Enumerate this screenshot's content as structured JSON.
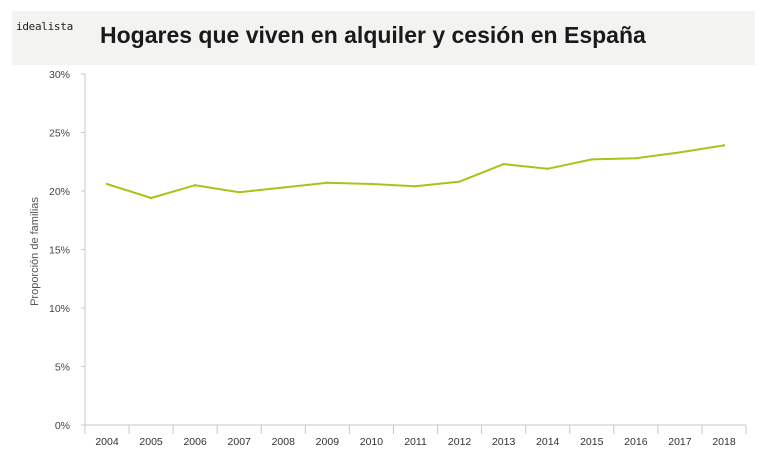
{
  "header": {
    "brand": "idealista",
    "title": "Hogares que viven en alquiler y cesión en España"
  },
  "colors": {
    "line": "#a8c41a",
    "axis": "#c8c8c8",
    "header_bg": "#f3f3f1",
    "text": "#333333"
  },
  "chart_data": {
    "type": "line",
    "title": "Hogares que viven en alquiler y cesión en España",
    "xlabel": "",
    "ylabel": "Proporción de familias",
    "categories": [
      "2004",
      "2005",
      "2006",
      "2007",
      "2008",
      "2009",
      "2010",
      "2011",
      "2012",
      "2013",
      "2014",
      "2015",
      "2016",
      "2017",
      "2018"
    ],
    "series": [
      {
        "values": [
          20.6,
          19.4,
          20.5,
          19.9,
          20.3,
          20.7,
          20.6,
          20.4,
          20.8,
          22.3,
          21.9,
          22.7,
          22.8,
          23.3,
          23.9
        ]
      }
    ],
    "ylim": [
      0,
      30
    ],
    "yticks": [
      "0%",
      "5%",
      "10%",
      "15%",
      "20%",
      "25%",
      "30%"
    ],
    "grid": false,
    "legend": "none"
  }
}
